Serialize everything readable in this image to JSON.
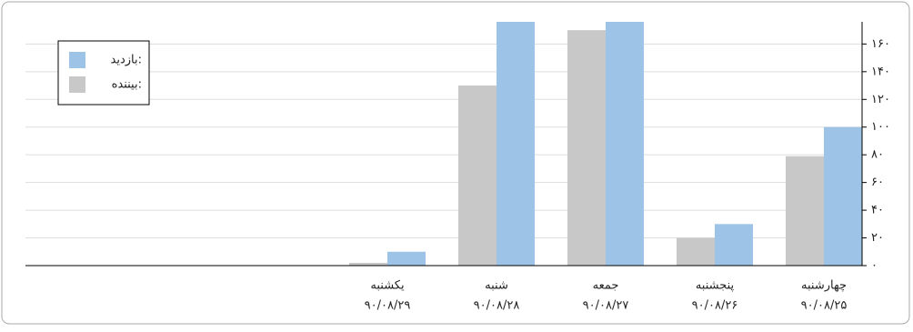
{
  "chart_data": {
    "type": "bar",
    "categories": [
      "چهارشنبه",
      "پنجشنبه",
      "جمعه",
      "شنبه",
      "یکشنبه"
    ],
    "dates": [
      "۹۰/۰۸/۲۵",
      "۹۰/۰۸/۲۶",
      "۹۰/۰۸/۲۷",
      "۹۰/۰۸/۲۸",
      "۹۰/۰۸/۲۹"
    ],
    "series": [
      {
        "name": "بازدید:",
        "color": "#9dc3e6",
        "values": [
          100,
          30,
          176,
          176,
          10
        ]
      },
      {
        "name": "بیننده:",
        "color": "#c8c8c8",
        "values": [
          79,
          20,
          170,
          130,
          2
        ]
      }
    ],
    "ylim": [
      0,
      176
    ],
    "yticks": [
      {
        "value": 0,
        "label": "۰"
      },
      {
        "value": 20,
        "label": "۲۰"
      },
      {
        "value": 40,
        "label": "۴۰"
      },
      {
        "value": 60,
        "label": "۶۰"
      },
      {
        "value": 80,
        "label": "۸۰"
      },
      {
        "value": 100,
        "label": "۱۰۰"
      },
      {
        "value": 120,
        "label": "۱۲۰"
      },
      {
        "value": 140,
        "label": "۱۴۰"
      },
      {
        "value": 160,
        "label": "۱۶۰"
      }
    ],
    "grid": true,
    "legend": "top-left"
  }
}
